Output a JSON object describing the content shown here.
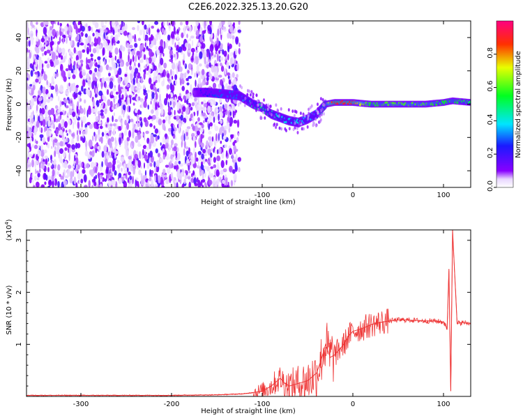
{
  "title": "C2E6.2022.325.13.20.G20",
  "colors": {
    "snr_line": "#ee3333",
    "background": "#ffffff",
    "axis": "#000000"
  },
  "chart_data": [
    {
      "type": "heatmap",
      "title": "C2E6.2022.325.13.20.G20",
      "xlabel": "Height of straight line (km)",
      "ylabel": "Frequency (Hz)",
      "xlim": [
        -360,
        130
      ],
      "ylim": [
        -50,
        50
      ],
      "x_ticks": [
        -300,
        -200,
        -100,
        0,
        100
      ],
      "y_ticks": [
        -40,
        -20,
        0,
        20,
        40
      ],
      "colorbar": {
        "label": "Normalized spectral amplitude",
        "range": [
          0,
          1
        ],
        "ticks": [
          "0.0",
          "0.2",
          "0.4",
          "0.6",
          "0.8"
        ],
        "colormap": "rainbow (purple to red)"
      },
      "noise_region_x": [
        -360,
        -125
      ],
      "signal_track": {
        "x": [
          -175,
          -160,
          -140,
          -125,
          -110,
          -100,
          -90,
          -80,
          -70,
          -60,
          -50,
          -40,
          -30,
          -20,
          -10,
          0,
          20,
          40,
          60,
          80,
          100,
          110,
          130
        ],
        "y": [
          7,
          7,
          6,
          5,
          0,
          -2,
          -6,
          -8,
          -10,
          -11,
          -9,
          -6,
          0,
          1,
          1,
          1,
          0,
          0,
          0,
          0,
          1,
          2,
          1
        ],
        "amplitude": [
          0.15,
          0.25,
          0.3,
          0.3,
          0.45,
          0.5,
          0.45,
          0.4,
          0.4,
          0.4,
          0.35,
          0.35,
          0.55,
          0.9,
          0.9,
          0.85,
          0.55,
          0.6,
          0.6,
          0.6,
          0.55,
          0.55,
          0.5
        ]
      }
    },
    {
      "type": "line",
      "title": "",
      "xlabel": "Height of straight line (km)",
      "ylabel": "SNR (10 * v/v)",
      "y_multiplier": "(x10",
      "y_multiplier_exp": "4",
      "y_multiplier_close": ")",
      "xlim": [
        -360,
        130
      ],
      "ylim": [
        0,
        3.2
      ],
      "x_ticks": [
        -300,
        -200,
        -100,
        0,
        100
      ],
      "y_ticks": [
        1,
        2,
        3
      ],
      "grid": false,
      "series": [
        {
          "x": [
            -360,
            -300,
            -200,
            -150,
            -120,
            -100,
            -90,
            -80,
            -75,
            -70,
            -60,
            -50,
            -40,
            -35,
            -30,
            -25,
            -20,
            -15,
            -10,
            -5,
            0,
            10,
            20,
            30,
            40,
            50,
            60,
            70,
            80,
            90,
            100,
            104,
            106,
            108,
            110,
            115,
            120,
            130
          ],
          "y": [
            0.02,
            0.02,
            0.02,
            0.03,
            0.05,
            0.1,
            0.2,
            0.35,
            0.25,
            0.2,
            0.25,
            0.3,
            0.45,
            0.7,
            1.0,
            0.75,
            0.8,
            0.9,
            1.0,
            1.15,
            1.25,
            1.3,
            1.38,
            1.42,
            1.45,
            1.47,
            1.47,
            1.46,
            1.45,
            1.45,
            1.43,
            1.3,
            2.45,
            0.1,
            3.2,
            1.4,
            1.42,
            1.4
          ]
        }
      ]
    }
  ]
}
